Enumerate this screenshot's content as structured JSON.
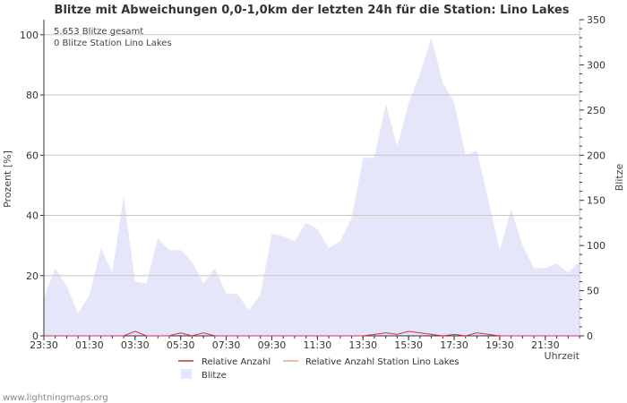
{
  "chart_data": {
    "type": "area",
    "title": "Blitze mit Abweichungen 0,0-1,0km der letzten 24h für die Station: Lino Lakes",
    "ylabel_left": "Prozent   [%]",
    "ylabel_right": "Blitze",
    "xlabel": "Uhrzeit",
    "y_left_lim": [
      0,
      105
    ],
    "y_right_lim": [
      0,
      350
    ],
    "y_left_ticks": [
      0,
      20,
      40,
      60,
      80,
      100
    ],
    "y_right_ticks": [
      0,
      50,
      100,
      150,
      200,
      250,
      300,
      350
    ],
    "x_tick_labels": [
      "23:30",
      "01:30",
      "03:30",
      "05:30",
      "07:30",
      "09:30",
      "11:30",
      "13:30",
      "15:30",
      "17:30",
      "19:30",
      "21:30"
    ],
    "info_lines": [
      "5.653 Blitze gesamt",
      "0 Blitze Station Lino Lakes"
    ],
    "series": [
      {
        "name": "Blitze",
        "color": "#e6e6fa",
        "axis": "right",
        "values": [
          42,
          75,
          55,
          25,
          45,
          97,
          70,
          155,
          60,
          58,
          108,
          95,
          95,
          82,
          58,
          75,
          47,
          46,
          28,
          46,
          113,
          110,
          105,
          125,
          118,
          97,
          105,
          130,
          197,
          197,
          257,
          210,
          257,
          290,
          330,
          280,
          258,
          200,
          205,
          150,
          95,
          140,
          100,
          75,
          75,
          80,
          70,
          82
        ]
      },
      {
        "name": "Relative Anzahl",
        "color": "#cc3355",
        "axis": "left",
        "values": [
          0,
          0,
          0,
          0,
          0,
          0,
          0,
          0,
          1.5,
          0,
          0,
          0,
          1,
          0,
          1,
          0,
          0,
          0,
          0,
          0,
          0,
          0,
          0,
          0,
          0,
          0,
          0,
          0,
          0,
          0.5,
          1,
          0.5,
          1.5,
          1,
          0.5,
          0,
          0.5,
          0,
          1,
          0.5,
          0,
          0,
          0,
          0,
          0,
          0,
          0,
          0
        ]
      },
      {
        "name": "Relative Anzahl Station Lino Lakes",
        "color": "#f0a090",
        "axis": "left",
        "values": []
      }
    ],
    "legend": [
      "Relative Anzahl",
      "Relative Anzahl Station Lino Lakes",
      "Blitze"
    ]
  },
  "footer": "www.lightningmaps.org"
}
